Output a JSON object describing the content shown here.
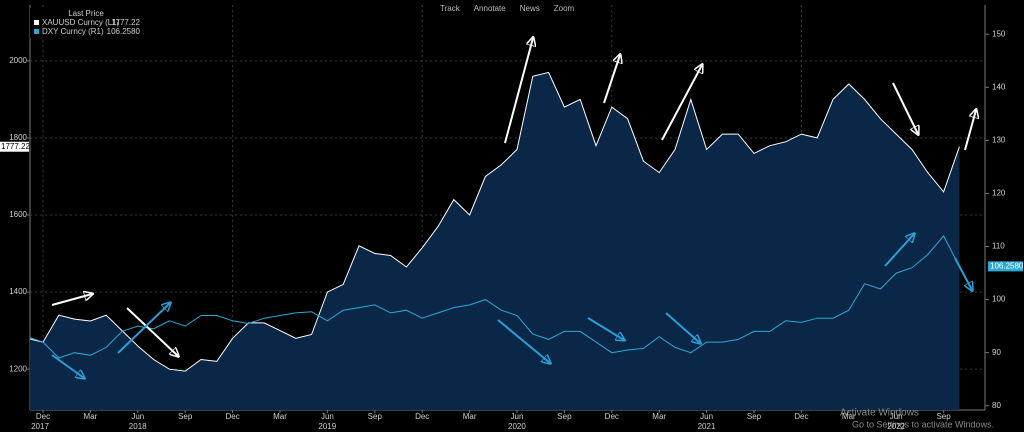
{
  "chart_data": {
    "type": "line",
    "toolbar": [
      "Track",
      "Annotate",
      "News",
      "Zoom"
    ],
    "legend_title": "Last Price",
    "x": [
      "2017-11",
      "2017-12",
      "2018-01",
      "2018-02",
      "2018-03",
      "2018-04",
      "2018-05",
      "2018-06",
      "2018-07",
      "2018-08",
      "2018-09",
      "2018-10",
      "2018-11",
      "2018-12",
      "2019-01",
      "2019-02",
      "2019-03",
      "2019-04",
      "2019-05",
      "2019-06",
      "2019-07",
      "2019-08",
      "2019-09",
      "2019-10",
      "2019-11",
      "2019-12",
      "2020-01",
      "2020-02",
      "2020-03",
      "2020-04",
      "2020-05",
      "2020-06",
      "2020-07",
      "2020-08",
      "2020-09",
      "2020-10",
      "2020-11",
      "2020-12",
      "2021-01",
      "2021-02",
      "2021-03",
      "2021-04",
      "2021-05",
      "2021-06",
      "2021-07",
      "2021-08",
      "2021-09",
      "2021-10",
      "2021-11",
      "2021-12",
      "2022-01",
      "2022-02",
      "2022-03",
      "2022-04",
      "2022-05",
      "2022-06",
      "2022-07",
      "2022-08",
      "2022-09",
      "2022-10"
    ],
    "series": [
      {
        "name": "XAUUSD Curncy  (L1)",
        "color": "#ffffff",
        "fill": "#0b2747",
        "axis": "y",
        "values": [
          1280,
          1270,
          1340,
          1330,
          1325,
          1340,
          1300,
          1260,
          1225,
          1200,
          1195,
          1225,
          1220,
          1280,
          1320,
          1320,
          1300,
          1280,
          1290,
          1400,
          1420,
          1520,
          1500,
          1495,
          1465,
          1515,
          1570,
          1640,
          1600,
          1700,
          1730,
          1770,
          1960,
          1970,
          1880,
          1900,
          1780,
          1880,
          1850,
          1740,
          1710,
          1770,
          1900,
          1770,
          1810,
          1810,
          1760,
          1780,
          1790,
          1810,
          1800,
          1900,
          1940,
          1900,
          1850,
          1810,
          1770,
          1710,
          1660,
          1777.22
        ]
      },
      {
        "name": "DXY Curncy  (R1)",
        "color": "#2aa8d8",
        "axis": "y2",
        "values": [
          93,
          92,
          89,
          90,
          89.5,
          91,
          94,
          95,
          94.5,
          96,
          95,
          97,
          97,
          96,
          95.5,
          96.5,
          97,
          97.5,
          97.7,
          96,
          98,
          98.5,
          99,
          97.5,
          98,
          96.5,
          97.5,
          98.5,
          99,
          100,
          98,
          97,
          93.5,
          92.5,
          94,
          94,
          92,
          90,
          90.5,
          90.8,
          93,
          91,
          90,
          92,
          92,
          92.5,
          94,
          94,
          96,
          95.7,
          96.5,
          96.5,
          98,
          103,
          102,
          105,
          106,
          108.5,
          112,
          106.258
        ],
        "value_labels": [
          null,
          null,
          null,
          null,
          null,
          null,
          null,
          null,
          null,
          null,
          null,
          null,
          null,
          null,
          null,
          null,
          null,
          null,
          null,
          null,
          null,
          null,
          null,
          null,
          null,
          null,
          null,
          null,
          null,
          null,
          null,
          null,
          null,
          null,
          null,
          null,
          null,
          null,
          null,
          null,
          null,
          null,
          null,
          null,
          null,
          null,
          null,
          null,
          null,
          null,
          null,
          null,
          null,
          null,
          null,
          null,
          null,
          null,
          null,
          "106.2580"
        ]
      }
    ],
    "ylim": [
      1094,
      2145
    ],
    "yticks": [
      1200,
      1400,
      1600,
      1800,
      2000
    ],
    "y2lim": [
      79.2,
      155.5
    ],
    "y2ticks": [
      80,
      90,
      100,
      110,
      120,
      130,
      140,
      150
    ],
    "xticks": [
      {
        "value": "2017-12",
        "label": "Dec"
      },
      {
        "value": "2018-03",
        "label": "Mar"
      },
      {
        "value": "2018-06",
        "label": "Jun"
      },
      {
        "value": "2018-09",
        "label": "Sep"
      },
      {
        "value": "2018-12",
        "label": "Dec"
      },
      {
        "value": "2019-03",
        "label": "Mar"
      },
      {
        "value": "2019-06",
        "label": "Jun"
      },
      {
        "value": "2019-09",
        "label": "Sep"
      },
      {
        "value": "2019-12",
        "label": "Dec"
      },
      {
        "value": "2020-03",
        "label": "Mar"
      },
      {
        "value": "2020-06",
        "label": "Jun"
      },
      {
        "value": "2020-09",
        "label": "Sep"
      },
      {
        "value": "2020-12",
        "label": "Dec"
      },
      {
        "value": "2021-03",
        "label": "Mar"
      },
      {
        "value": "2021-06",
        "label": "Jun"
      },
      {
        "value": "2021-09",
        "label": "Sep"
      },
      {
        "value": "2021-12",
        "label": "Dec"
      },
      {
        "value": "2022-03",
        "label": "Mar"
      },
      {
        "value": "2022-06",
        "label": "Jun"
      },
      {
        "value": "2022-09",
        "label": "Sep"
      }
    ],
    "year_labels": [
      2017,
      2018,
      2019,
      2020,
      2021,
      2022
    ],
    "grid": true,
    "watermark": [
      "Activate Windows",
      "Go to Settings to activate Windows."
    ]
  }
}
